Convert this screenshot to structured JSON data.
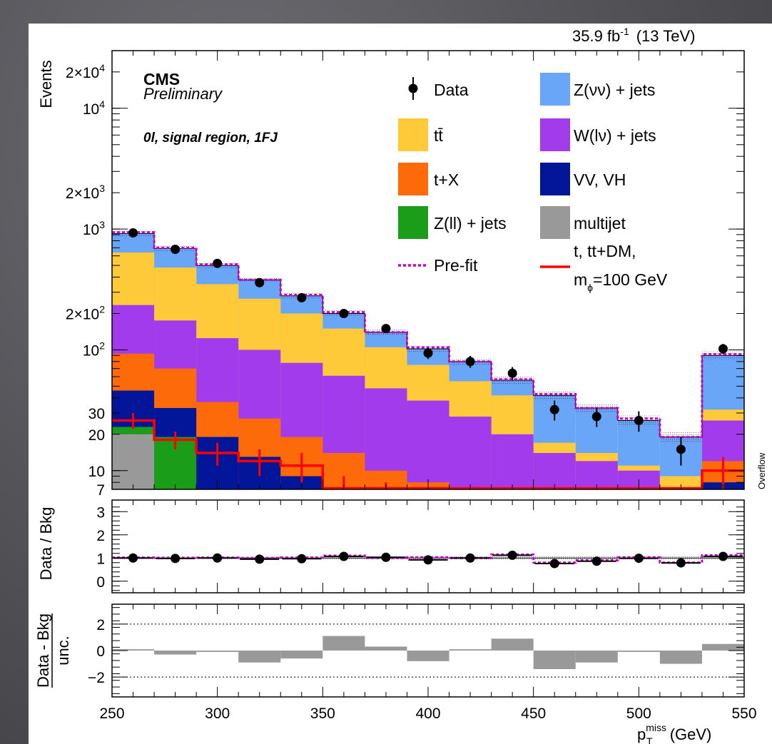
{
  "lumi_label": "35.9 fb",
  "lumi_exp": "-1",
  "energy_label": "(13 TeV)",
  "cms_label": "CMS",
  "preliminary_label": "Preliminary",
  "region_label": "0l, signal region, 1FJ",
  "overflow_label": "Overflow",
  "colors": {
    "znunu": "#6aa6f8",
    "ttbar": "#ffca3a",
    "wlnu": "#a23bec",
    "tX": "#fd6a0a",
    "vv": "#031699",
    "zll": "#1a9e1a",
    "multijet": "#999999",
    "prefit": "#cc00cc",
    "signal": "#ff0000",
    "pull": "#999999"
  },
  "legend": [
    {
      "key": "data",
      "label": "Data",
      "type": "marker"
    },
    {
      "key": "znunu",
      "label": "Z(νν) + jets",
      "type": "box"
    },
    {
      "key": "ttbar",
      "label": "tt̄",
      "type": "box"
    },
    {
      "key": "wlnu",
      "label": "W(lν) + jets",
      "type": "box"
    },
    {
      "key": "tX",
      "label": "t+X",
      "type": "box"
    },
    {
      "key": "vv",
      "label": "VV, VH",
      "type": "box"
    },
    {
      "key": "zll",
      "label": "Z(ll) + jets",
      "type": "box"
    },
    {
      "key": "multijet",
      "label": "multijet",
      "type": "box"
    },
    {
      "key": "prefit",
      "label": "Pre-fit",
      "type": "dashed"
    },
    {
      "key": "signal",
      "label": "t, tt+DM,",
      "label2": "m",
      "label2_sub": "ϕ",
      "label2_rest": "=100 GeV",
      "type": "line"
    }
  ],
  "chart_data": {
    "type": "bar",
    "subtype": "stacked-histogram",
    "bin_edges": [
      250,
      270,
      290,
      310,
      330,
      350,
      370,
      390,
      410,
      430,
      450,
      470,
      490,
      510,
      530,
      550
    ],
    "overflow_bin": 15,
    "xlabel": "p",
    "xlabel_sup": "miss",
    "xlabel_sub": "T",
    "xlabel_unit": " (GeV)",
    "x_ticks": [
      "250",
      "300",
      "350",
      "400",
      "450",
      "500",
      "550"
    ],
    "x_tick_values": [
      250,
      300,
      350,
      400,
      450,
      500,
      550
    ],
    "main": {
      "ylabel": "Events",
      "yscale": "log",
      "ylim": [
        7,
        30000
      ],
      "y_ticks": [
        {
          "value": 20000,
          "label": "2×10",
          "exp": "4"
        },
        {
          "value": 10000,
          "label": "10",
          "exp": "4"
        },
        {
          "value": 2000,
          "label": "2×10",
          "exp": "3"
        },
        {
          "value": 1000,
          "label": "10",
          "exp": "3"
        },
        {
          "value": 200,
          "label": "2×10",
          "exp": "2"
        },
        {
          "value": 100,
          "label": "10",
          "exp": "2"
        },
        {
          "value": 30,
          "label": "30",
          "exp": ""
        },
        {
          "value": 20,
          "label": "20",
          "exp": ""
        },
        {
          "value": 10,
          "label": "10",
          "exp": ""
        },
        {
          "value": 7,
          "label": "7",
          "exp": ""
        }
      ],
      "stack_cumulative": [
        {
          "key": "multijet",
          "name": "multijet",
          "values": [
            20,
            1,
            1,
            1,
            1,
            1,
            1,
            1,
            1,
            1,
            1,
            1,
            1,
            1,
            1
          ]
        },
        {
          "key": "zll",
          "name": "Z(ll) + jets",
          "values": [
            23,
            19,
            1,
            1,
            1,
            1,
            1,
            1,
            1,
            1,
            1,
            1,
            1,
            1,
            1
          ]
        },
        {
          "key": "vv",
          "name": "VV, VH",
          "values": [
            46,
            33,
            19,
            13,
            9,
            6,
            5,
            1,
            1,
            1,
            1,
            1,
            1,
            1,
            8
          ]
        },
        {
          "key": "tX",
          "name": "t+X",
          "values": [
            93,
            70,
            37,
            27,
            19,
            14,
            10,
            8,
            7,
            1,
            1,
            1,
            1,
            1,
            12
          ]
        },
        {
          "key": "wlnu",
          "name": "W(lν) + jets",
          "values": [
            235,
            175,
            125,
            100,
            78,
            61,
            48,
            38,
            28,
            20,
            14,
            12,
            10,
            7,
            26
          ]
        },
        {
          "key": "ttbar",
          "name": "tt̄",
          "values": [
            640,
            480,
            350,
            265,
            200,
            150,
            105,
            75,
            55,
            42,
            17,
            14,
            11,
            9,
            32
          ]
        },
        {
          "key": "znunu",
          "name": "Z(νν) + jets",
          "values": [
            920,
            690,
            500,
            380,
            280,
            200,
            140,
            102,
            80,
            56,
            42,
            33,
            26,
            19,
            90
          ]
        }
      ],
      "unc_band": [
        0.05,
        0.05,
        0.05,
        0.05,
        0.05,
        0.06,
        0.06,
        0.07,
        0.07,
        0.08,
        0.09,
        0.09,
        0.1,
        0.11,
        0.08
      ],
      "prefit": [
        940,
        700,
        510,
        380,
        285,
        205,
        140,
        105,
        80,
        57,
        43,
        33,
        27,
        19,
        92
      ],
      "signal": [
        26,
        18,
        14,
        12,
        11,
        7,
        6,
        1,
        1,
        1,
        1,
        1,
        1,
        1,
        10
      ],
      "signal_err": [
        4,
        3,
        3,
        3,
        3,
        2,
        2,
        0,
        0,
        0,
        0,
        0,
        0,
        0,
        3
      ],
      "data": [
        930,
        680,
        520,
        360,
        270,
        200,
        150,
        94,
        80,
        64,
        32,
        28,
        26,
        15,
        102
      ],
      "data_err": [
        31,
        26,
        23,
        19,
        16,
        14,
        12,
        10,
        9,
        8,
        6,
        5,
        5,
        4,
        10
      ]
    },
    "ratio": {
      "ylabel": "Data / Bkg",
      "ylim": [
        -0.5,
        3.5
      ],
      "y_ticks": [
        0,
        1,
        2,
        3
      ],
      "values": [
        1.0,
        0.98,
        1.0,
        0.95,
        0.97,
        1.07,
        1.03,
        0.92,
        1.0,
        1.12,
        0.76,
        0.86,
        0.99,
        0.79,
        1.07
      ],
      "prefit": [
        1.02,
        1.01,
        1.02,
        1.0,
        1.02,
        1.1,
        1.0,
        1.03,
        1.0,
        1.15,
        0.8,
        0.9,
        1.03,
        0.8,
        1.12
      ],
      "unc_band": [
        0.05,
        0.05,
        0.05,
        0.05,
        0.05,
        0.06,
        0.06,
        0.07,
        0.07,
        0.08,
        0.09,
        0.09,
        0.1,
        0.11,
        0.08
      ]
    },
    "pull": {
      "ylabel_num": "Data - Bkg",
      "ylabel_den": "unc.",
      "ylim": [
        -3.5,
        3.5
      ],
      "y_ticks": [
        {
          "value": 2,
          "label": "2"
        },
        {
          "value": 0,
          "label": "0"
        },
        {
          "value": -2,
          "label": "−2"
        }
      ],
      "values": [
        0.1,
        -0.3,
        -0.1,
        -0.9,
        -0.6,
        1.1,
        0.3,
        -0.8,
        0.1,
        0.9,
        -1.4,
        -0.9,
        -0.1,
        -1.0,
        0.5
      ]
    }
  }
}
